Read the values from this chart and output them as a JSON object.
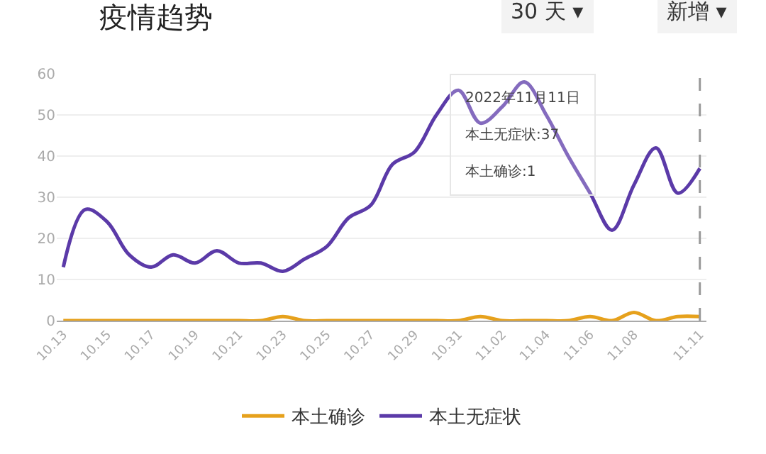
{
  "chart_data": {
    "type": "line",
    "title": "疫情趋势",
    "categories": [
      "10.13",
      null,
      "10.15",
      null,
      "10.17",
      null,
      "10.19",
      null,
      "10.21",
      null,
      "10.23",
      null,
      "10.25",
      null,
      "10.27",
      null,
      "10.29",
      null,
      "10.31",
      null,
      "11.02",
      null,
      "11.04",
      null,
      "11.06",
      null,
      "11.08",
      null,
      null,
      "11.11"
    ],
    "series": [
      {
        "name": "本土确诊",
        "color": "#e6a11c",
        "values": [
          0,
          0,
          0,
          0,
          0,
          0,
          0,
          0,
          0,
          0,
          1,
          0,
          0,
          0,
          0,
          0,
          0,
          0,
          0,
          1,
          0,
          0,
          0,
          0,
          1,
          0,
          2,
          0,
          1,
          1
        ]
      },
      {
        "name": "本土无症状",
        "color": "#5b3aa8",
        "values": [
          13,
          27,
          24,
          16,
          13,
          16,
          14,
          17,
          14,
          14,
          12,
          15,
          18,
          25,
          28,
          38,
          41,
          50,
          56,
          48,
          52,
          58,
          50,
          40,
          31,
          22,
          33,
          42,
          31,
          37
        ]
      }
    ],
    "ylim": [
      0,
      60
    ],
    "yticks": [
      0,
      10,
      20,
      30,
      40,
      50,
      60
    ],
    "grid": "y",
    "legend": "bottom",
    "line_style": "solid",
    "ref_lines": [
      {
        "axis": "x",
        "value": "11.11",
        "label": null,
        "color": "#999999",
        "line_style": "dashed"
      }
    ],
    "annotations": [
      "30 天 ▾",
      "新增 ▾",
      "2022年11月11日",
      "本土无症状:37",
      "本土确诊:1"
    ]
  }
}
